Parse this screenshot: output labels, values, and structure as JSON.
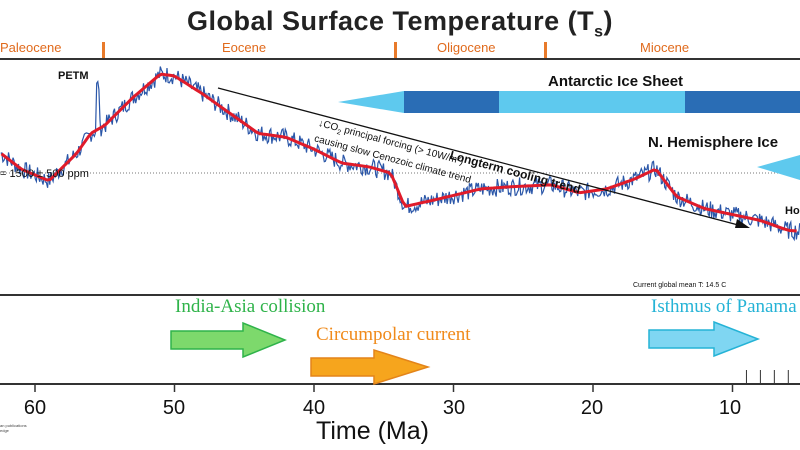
{
  "title_main": "Global Surface Temperature (T",
  "title_sub": "s",
  "title_close": ")",
  "epochs": [
    "Paleocene",
    "Eocene",
    "Oligocene",
    "Miocene"
  ],
  "ice_sheets": {
    "antarctic": "Antarctic Ice Sheet",
    "northern": "N. Hemisphere Ice"
  },
  "annotations": {
    "petm": "PETM",
    "co2": "= 1500 ± 500 ppm",
    "cooling_trend": "Longterm cooling trend",
    "forcing_line1": "↓CO",
    "forcing_sub": "2",
    "forcing_line1_rest": " principal forcing (> 10W/m²)",
    "forcing_line2": "causing slow Cenozoic climate trend",
    "current_mean": "Current global mean T: 14.5 C",
    "holocene_partial": "Ho"
  },
  "events": {
    "india_asia": "India-Asia collision",
    "circumpolar": "Circumpolar current",
    "panama": "Isthmus of Panama"
  },
  "credit_line1": "an publications",
  "credit_line2": "edge",
  "colors": {
    "temperature_raw": "#2a56a8",
    "temperature_smoothed": "#e01b2a",
    "epoch_text": "#e06a1c",
    "epoch_tick": "#e87a2a",
    "antarctic_light": "#5ec9ee",
    "antarctic_dark": "#2a6db5",
    "india_asia": "#2fb34a",
    "circumpolar": "#f08a1a",
    "panama": "#25b3d6"
  },
  "chart_data": {
    "type": "line",
    "title": "Global Surface Temperature (Ts)",
    "xlabel": "Time (Ma)",
    "ylabel": "",
    "x_ticks": [
      60,
      50,
      40,
      30,
      20,
      10
    ],
    "xlim": [
      66,
      0
    ],
    "x_reversed": true,
    "epoch_boundaries_ma": [
      56,
      34,
      23
    ],
    "series": [
      {
        "x": [
          66,
          63,
          61,
          59,
          57,
          56,
          55,
          53,
          51,
          50,
          48,
          46,
          44,
          42,
          40,
          38,
          36,
          34.5,
          33.5,
          31,
          28,
          26,
          23,
          21,
          19,
          17,
          15.5,
          14,
          12,
          10,
          8,
          6,
          4,
          2,
          0
        ],
        "values": [
          0.6,
          0.61,
          0.5,
          0.44,
          0.58,
          0.68,
          0.72,
          0.86,
          0.98,
          0.97,
          0.88,
          0.78,
          0.68,
          0.66,
          0.6,
          0.53,
          0.51,
          0.48,
          0.31,
          0.35,
          0.4,
          0.41,
          0.42,
          0.38,
          0.4,
          0.45,
          0.5,
          0.36,
          0.3,
          0.27,
          0.24,
          0.19,
          0.18,
          0.12,
          0.1
        ]
      }
    ],
    "reference_line": 0.48,
    "spike_ma": 55.5
  }
}
